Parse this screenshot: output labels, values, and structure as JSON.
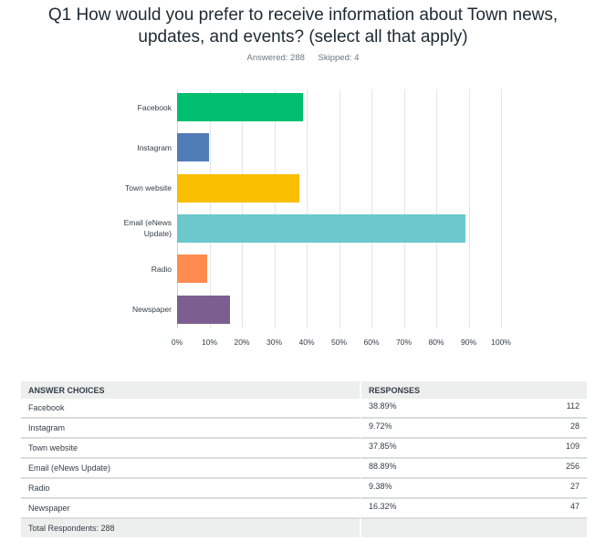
{
  "question": {
    "title_line1": "Q1 How would you prefer to receive information about Town news,",
    "title_line2": "updates, and events? (select all that apply)",
    "answered": "Answered: 288",
    "skipped": "Skipped: 4"
  },
  "chart_data": {
    "type": "bar",
    "orientation": "horizontal",
    "title": "Q1 How would you prefer to receive information about Town news, updates, and events? (select all that apply)",
    "categories": [
      "Facebook",
      "Instagram",
      "Town website",
      "Email (eNews Update)",
      "Radio",
      "Newspaper"
    ],
    "values": [
      38.89,
      9.72,
      37.85,
      88.89,
      9.38,
      16.32
    ],
    "colors": [
      "#00bf6f",
      "#507cb6",
      "#f9be00",
      "#6bc8cd",
      "#ff8b4f",
      "#7d5e90"
    ],
    "xlabel": "",
    "ylabel": "",
    "xlim": [
      0,
      100
    ],
    "xticks": [
      "0%",
      "10%",
      "20%",
      "30%",
      "40%",
      "50%",
      "60%",
      "70%",
      "80%",
      "90%",
      "100%"
    ],
    "grid": true
  },
  "chart_labels": [
    "Facebook",
    "Instagram",
    "Town website",
    "Email (eNews",
    "Radio",
    "Newspaper"
  ],
  "chart_labels_line2": [
    "",
    "",
    "",
    "Update)",
    "",
    ""
  ],
  "table": {
    "headers": [
      "ANSWER CHOICES",
      "RESPONSES",
      ""
    ],
    "rows": [
      {
        "choice": "Facebook",
        "percent": "38.89%",
        "count": "112"
      },
      {
        "choice": "Instagram",
        "percent": "9.72%",
        "count": "28"
      },
      {
        "choice": "Town website",
        "percent": "37.85%",
        "count": "109"
      },
      {
        "choice": "Email (eNews Update)",
        "percent": "88.89%",
        "count": "256"
      },
      {
        "choice": "Radio",
        "percent": "9.38%",
        "count": "27"
      },
      {
        "choice": "Newspaper",
        "percent": "16.32%",
        "count": "47"
      }
    ],
    "total": "Total Respondents: 288"
  }
}
